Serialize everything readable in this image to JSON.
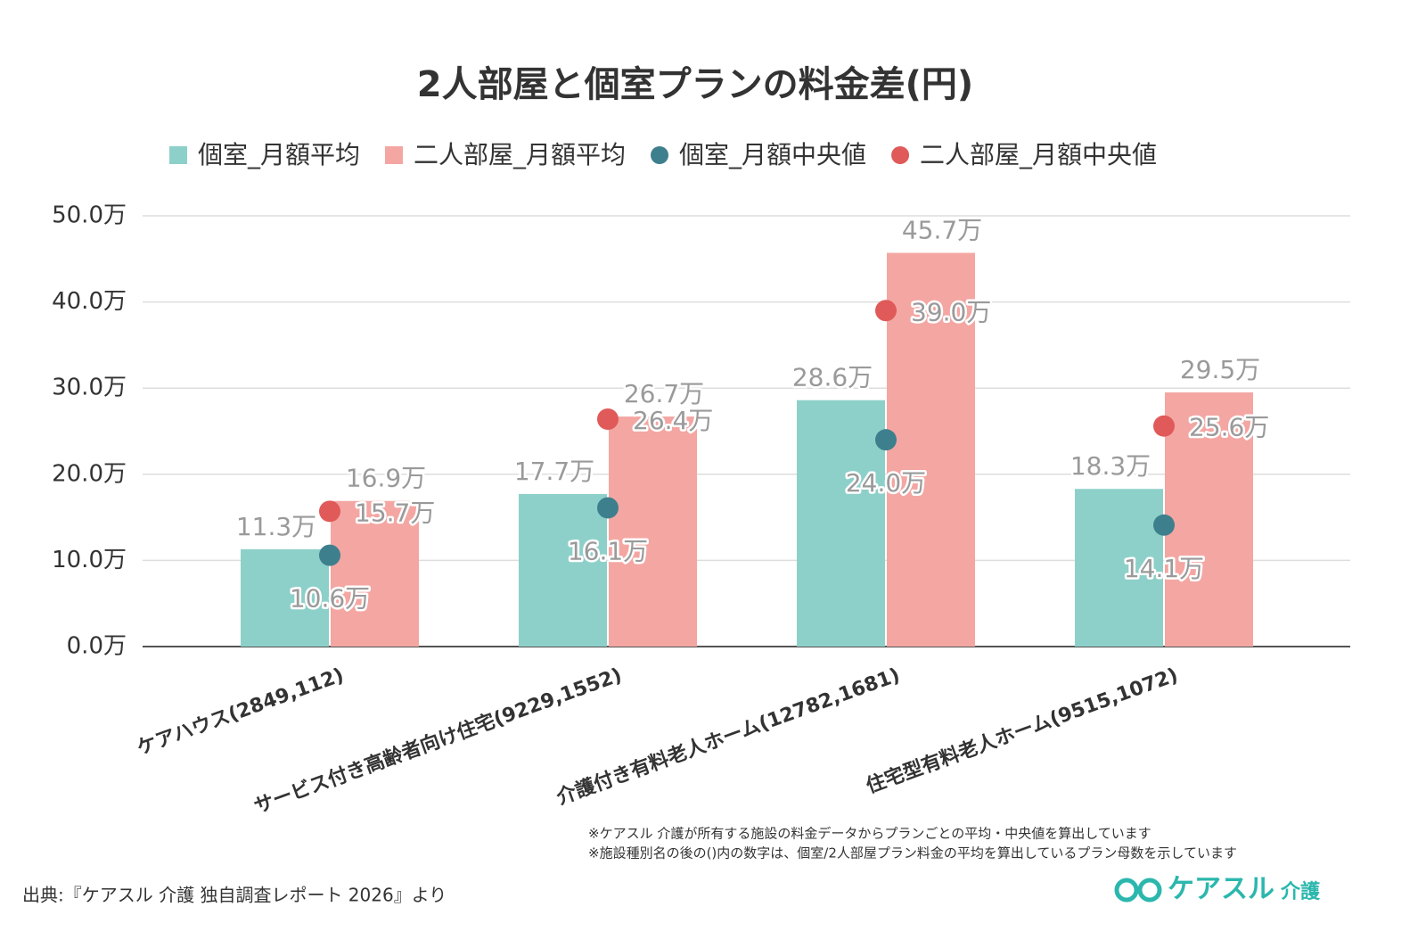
{
  "chart_data": {
    "type": "bar",
    "title": "2人部屋と個室プランの料金差(円)",
    "categories": [
      "ケアハウス(2849,112)",
      "サービス付き高齢者向け住宅(9229,1552)",
      "介護付き有料老人ホーム(12782,1681)",
      "住宅型有料老人ホーム(9515,1072)"
    ],
    "series": [
      {
        "name": "個室_月額平均",
        "type": "bar",
        "color": "#8dd0c9",
        "values": [
          11.3,
          17.7,
          28.6,
          18.3
        ],
        "value_labels": [
          "11.3万",
          "17.7万",
          "28.6万",
          "18.3万"
        ]
      },
      {
        "name": "二人部屋_月額平均",
        "type": "bar",
        "color": "#f4a6a2",
        "values": [
          16.9,
          26.7,
          45.7,
          29.5
        ],
        "value_labels": [
          "16.9万",
          "26.7万",
          "45.7万",
          "29.5万"
        ]
      },
      {
        "name": "個室_月額中央値",
        "type": "dot",
        "color": "#3e7f8d",
        "values": [
          10.6,
          16.1,
          24.0,
          14.1
        ],
        "value_labels": [
          "10.6万",
          "16.1万",
          "24.0万",
          "14.1万"
        ]
      },
      {
        "name": "二人部屋_月額中央値",
        "type": "dot",
        "color": "#e05a5a",
        "values": [
          15.7,
          26.4,
          39.0,
          25.6
        ],
        "value_labels": [
          "15.7万",
          "26.4万",
          "39.0万",
          "25.6万"
        ]
      }
    ],
    "ylim": [
      0,
      50
    ],
    "yticks": [
      {
        "value": 0,
        "label": "0.0万"
      },
      {
        "value": 10,
        "label": "10.0万"
      },
      {
        "value": 20,
        "label": "20.0万"
      },
      {
        "value": 30,
        "label": "30.0万"
      },
      {
        "value": 40,
        "label": "40.0万"
      },
      {
        "value": 50,
        "label": "50.0万"
      }
    ],
    "grid": true,
    "notes": [
      "※ケアスル 介護が所有する施設の料金データからプランごとの平均・中央値を算出しています",
      "※施設種別名の後の()内の数字は、個室/2人部屋プラン料金の平均を算出しているプラン母数を示しています"
    ],
    "source": "出典:『ケアスル 介護 独自調査レポート 2026』より",
    "logo": {
      "brand": "ケアスル",
      "sub": "介護"
    }
  }
}
